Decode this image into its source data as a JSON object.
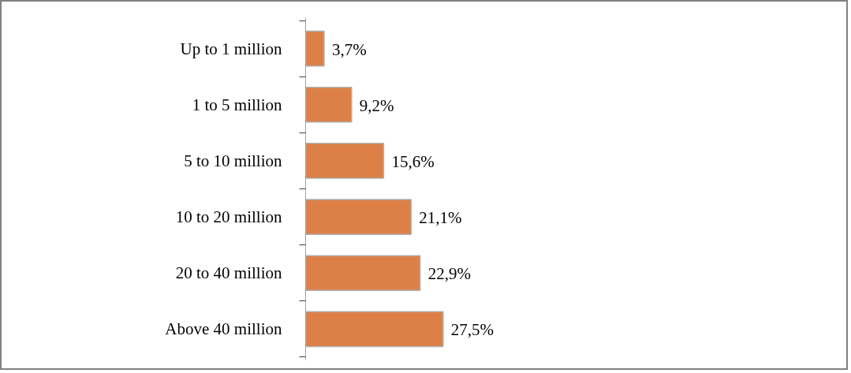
{
  "chart_data": {
    "type": "bar",
    "orientation": "horizontal",
    "categories": [
      "Up to 1 million",
      "1 to 5 million",
      "5 to 10 million",
      "10 to 20 million",
      "20 to 40 million",
      "Above 40 million"
    ],
    "values": [
      3.7,
      9.2,
      15.6,
      21.1,
      22.9,
      27.5
    ],
    "value_labels": [
      "3,7%",
      "9,2%",
      "15,6%",
      "21,1%",
      "22,9%",
      "27,5%"
    ],
    "color": "#dd8047"
  }
}
